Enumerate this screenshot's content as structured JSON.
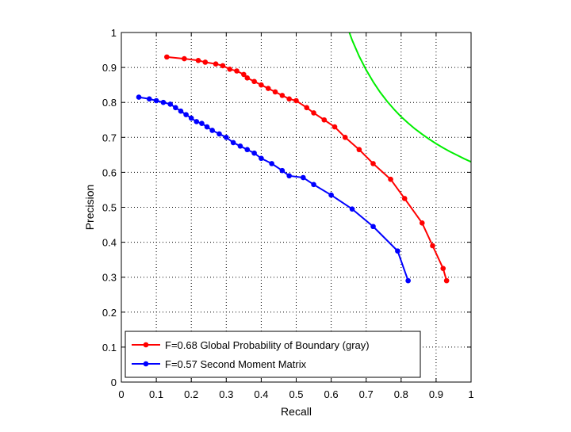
{
  "chart_data": {
    "type": "line",
    "title": "",
    "xlabel": "Recall",
    "ylabel": "Precision",
    "xlim": [
      0,
      1
    ],
    "ylim": [
      0,
      1
    ],
    "grid": true,
    "legend_position": "bottom-left",
    "x_ticks": [
      "0",
      "0.1",
      "0.2",
      "0.3",
      "0.4",
      "0.5",
      "0.6",
      "0.7",
      "0.8",
      "0.9",
      "1"
    ],
    "y_ticks": [
      "0",
      "0.1",
      "0.2",
      "0.3",
      "0.4",
      "0.5",
      "0.6",
      "0.7",
      "0.8",
      "0.9",
      "1"
    ],
    "series": [
      {
        "name": "F=0.68 Global Probability of Boundary (gray)",
        "color": "#ff0000",
        "marker": "dot",
        "x": [
          0.13,
          0.18,
          0.22,
          0.24,
          0.27,
          0.29,
          0.31,
          0.33,
          0.35,
          0.36,
          0.38,
          0.4,
          0.42,
          0.44,
          0.46,
          0.48,
          0.5,
          0.53,
          0.55,
          0.58,
          0.61,
          0.64,
          0.68,
          0.72,
          0.77,
          0.81,
          0.86,
          0.89,
          0.92,
          0.93
        ],
        "y": [
          0.93,
          0.925,
          0.92,
          0.915,
          0.91,
          0.905,
          0.895,
          0.89,
          0.88,
          0.87,
          0.86,
          0.85,
          0.84,
          0.83,
          0.82,
          0.81,
          0.805,
          0.785,
          0.77,
          0.75,
          0.73,
          0.7,
          0.665,
          0.625,
          0.58,
          0.525,
          0.455,
          0.39,
          0.325,
          0.29
        ]
      },
      {
        "name": "F=0.57 Second Moment Matrix",
        "color": "#0000ff",
        "marker": "dot",
        "x": [
          0.05,
          0.08,
          0.1,
          0.12,
          0.14,
          0.155,
          0.17,
          0.185,
          0.2,
          0.215,
          0.23,
          0.245,
          0.26,
          0.28,
          0.3,
          0.32,
          0.34,
          0.36,
          0.38,
          0.4,
          0.43,
          0.46,
          0.48,
          0.52,
          0.55,
          0.6,
          0.66,
          0.72,
          0.79,
          0.82
        ],
        "y": [
          0.815,
          0.81,
          0.805,
          0.8,
          0.795,
          0.785,
          0.775,
          0.765,
          0.755,
          0.745,
          0.74,
          0.73,
          0.72,
          0.71,
          0.7,
          0.685,
          0.675,
          0.665,
          0.655,
          0.64,
          0.625,
          0.605,
          0.59,
          0.585,
          0.565,
          0.535,
          0.495,
          0.445,
          0.375,
          0.29
        ]
      },
      {
        "name": "",
        "color": "#00ee00",
        "marker": "none",
        "x": [
          0.652,
          0.66,
          0.68,
          0.7,
          0.72,
          0.74,
          0.76,
          0.78,
          0.8,
          0.82,
          0.84,
          0.86,
          0.88,
          0.9,
          0.92,
          0.94,
          0.96,
          0.98,
          1.0
        ],
        "y": [
          1.0,
          0.978,
          0.932,
          0.893,
          0.859,
          0.829,
          0.803,
          0.78,
          0.759,
          0.741,
          0.724,
          0.709,
          0.695,
          0.682,
          0.67,
          0.659,
          0.649,
          0.639,
          0.63
        ]
      }
    ]
  }
}
